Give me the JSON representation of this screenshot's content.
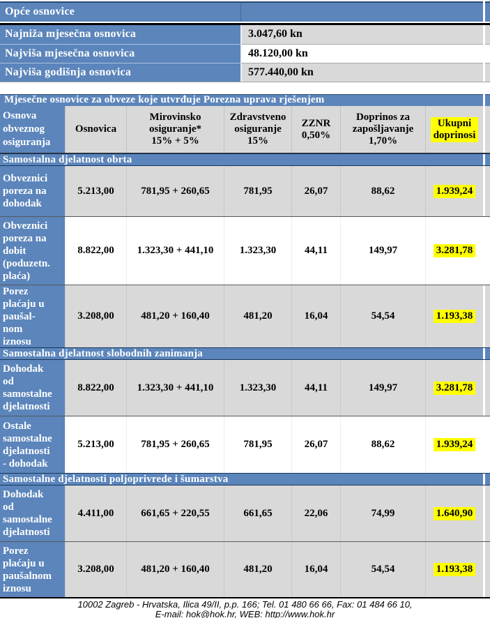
{
  "colors": {
    "header_blue": "#5b85bb",
    "dark_navy_border": "#17365d",
    "band_grey": "#d9d9d9",
    "band_white": "#ffffff",
    "highlight_yellow": "#ffff00",
    "rule_black": "#000000"
  },
  "table1": {
    "header": "Opće osnovice",
    "rows": [
      {
        "label": "Najniža mjesečna osnovica",
        "value": "3.047,60 kn",
        "band": "grey"
      },
      {
        "label": "Najviša mjesečna osnovica",
        "value": "48.120,00 kn",
        "band": "white"
      },
      {
        "label": "Najviša godišnja osnovica",
        "value": "577.440,00 kn",
        "band": "grey"
      }
    ]
  },
  "table2": {
    "title": "Mjesečne osnovice za obveze koje utvrđuje Porezna uprava rješenjem",
    "columns": [
      "Osnova\nobveznog\nosiguranja",
      "Osnovica",
      "Mirovinsko\nosiguranje*\n15% + 5%",
      "Zdravstveno\nosiguranje\n15%",
      "ZZNR\n0,50%",
      "Doprinos za\nzapošljavanje\n1,70%",
      "Ukupni\ndoprinosi"
    ],
    "sections": [
      {
        "heading": "Samostalna djelatnost obrta",
        "rows": [
          {
            "label": "Obveznici\nporeza na\ndohodak",
            "band": "grey",
            "cells": [
              "5.213,00",
              "781,95 + 260,65",
              "781,95",
              "26,07",
              "88,62"
            ],
            "total": "1.939,24"
          },
          {
            "label": "Obveznici\nporeza na\ndobit\n(poduzetn.\nplaća)",
            "band": "white",
            "cells": [
              "8.822,00",
              "1.323,30 + 441,10",
              "1.323,30",
              "44,11",
              "149,97"
            ],
            "total": "3.281,78"
          },
          {
            "label": "Porez\nplaćaju u\npaušal-\nnom\niznosu",
            "band": "grey",
            "cells": [
              "3.208,00",
              "481,20 + 160,40",
              "481,20",
              "16,04",
              "54,54"
            ],
            "total": "1.193,38"
          }
        ]
      },
      {
        "heading": "Samostalna djelatnost slobodnih zanimanja",
        "rows": [
          {
            "label": "Dohodak\nod\nsamostalne\ndjelatnosti",
            "band": "grey",
            "cells": [
              "8.822,00",
              "1.323,30 + 441,10",
              "1.323,30",
              "44,11",
              "149,97"
            ],
            "total": "3.281,78"
          },
          {
            "label": "Ostale\nsamostalne\ndjelatnosti\n- dohodak",
            "band": "white",
            "cells": [
              "5.213,00",
              "781,95 + 260,65",
              "781,95",
              "26,07",
              "88,62"
            ],
            "total": "1.939,24"
          }
        ]
      },
      {
        "heading": "Samostalne djelatnosti poljoprivrede i šumarstva",
        "rows": [
          {
            "label": "Dohodak\nod\nsamostalne\ndjelatnosti",
            "band": "grey",
            "cells": [
              "4.411,00",
              "661,65 + 220,55",
              "661,65",
              "22,06",
              "74,99"
            ],
            "total": "1.640,90"
          },
          {
            "label": "Porez\nplaćaju u\npaušalnom\niznosu",
            "band": "grey",
            "cells": [
              "3.208,00",
              "481,20 + 160,40",
              "481,20",
              "16,04",
              "54,54"
            ],
            "total": "1.193,38"
          }
        ]
      }
    ]
  },
  "footer": {
    "line1": "10002 Zagreb - Hrvatska, Ilica 49/II, p.p. 166; Tel. 01 480 66 66,  Fax: 01 484 66 10,",
    "line2": "E-mail: hok@hok.hr, WEB: http://www.hok.hr"
  }
}
